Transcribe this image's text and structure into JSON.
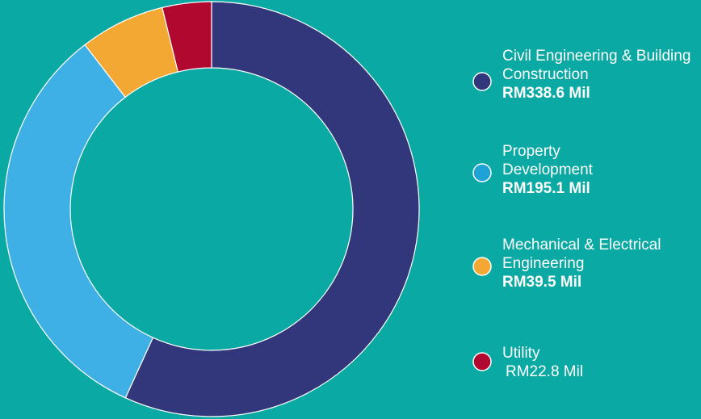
{
  "chart_data": {
    "type": "donut",
    "categories": [
      "Civil Engineering & Building Construction",
      "Property Development",
      "Mechanical & Electrical Engineering",
      "Utility"
    ],
    "values": [
      338.6,
      195.1,
      39.5,
      22.8
    ],
    "value_labels": [
      "RM338.6 Mil",
      "RM195.1 Mil",
      "RM39.5 Mil",
      "RM22.8 Mil"
    ],
    "colors": [
      "#32367a",
      "#3fb0e6",
      "#f2a833",
      "#b0082f"
    ],
    "legend_colors": [
      "#32367a",
      "#1fa3d6",
      "#f2a833",
      "#b0082f"
    ],
    "legend": "right"
  }
}
